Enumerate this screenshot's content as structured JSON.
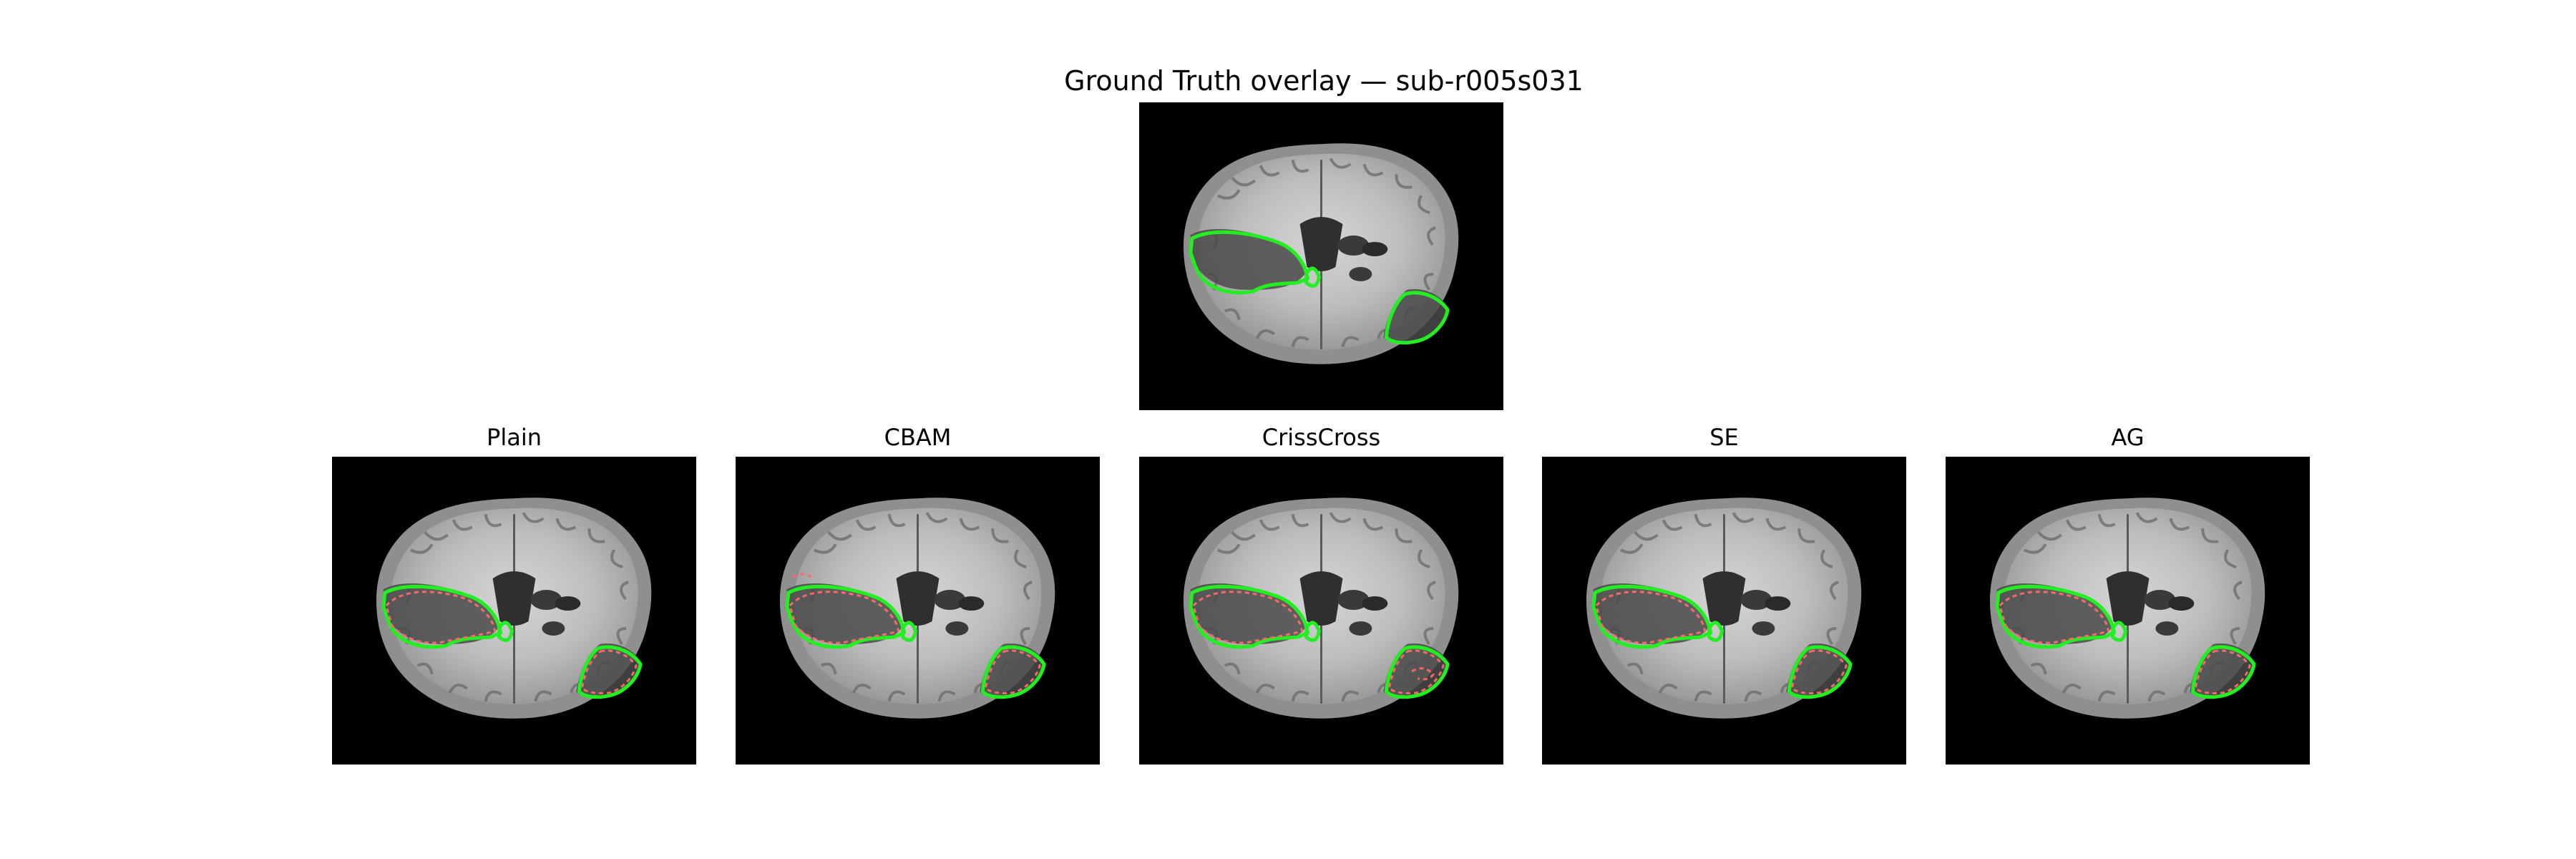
{
  "figure": {
    "title": "Ground Truth overlay — sub-r005s031"
  },
  "ground_truth": {
    "label": "Ground Truth",
    "contour_color": "#22ee22"
  },
  "prediction_color": "#ff6a6a",
  "panels": [
    {
      "title": "Plain"
    },
    {
      "title": "CBAM"
    },
    {
      "title": "CrissCross"
    },
    {
      "title": "SE"
    },
    {
      "title": "AG"
    }
  ]
}
